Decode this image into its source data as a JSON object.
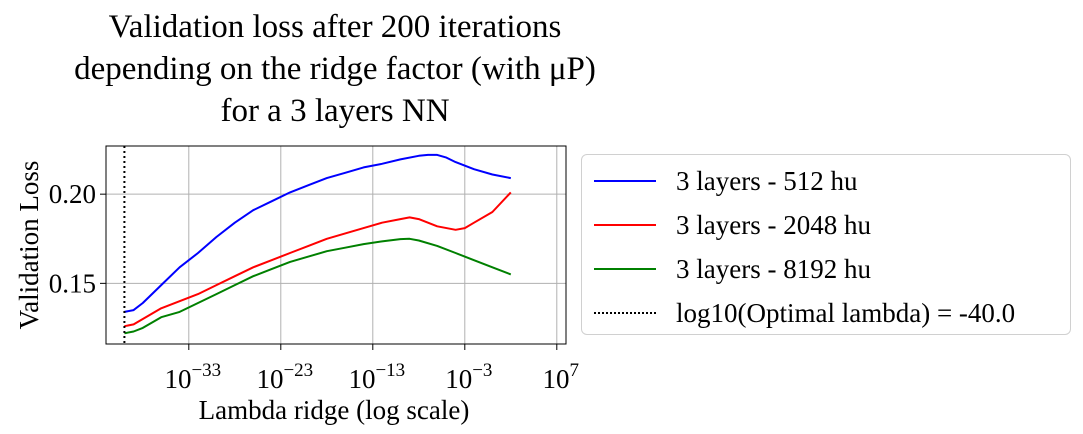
{
  "title_lines": [
    "Validation loss after 200 iterations",
    "depending on the ridge factor (with μP)",
    "for a 3 layers NN"
  ],
  "chart_data": {
    "type": "line",
    "title": "Validation loss after 200 iterations depending on the ridge factor (with μP) for a 3 layers NN",
    "xlabel": "Lambda ridge (log scale)",
    "ylabel": "Validation Loss",
    "xscale": "log",
    "x_ticks": [
      {
        "base": "10",
        "exp": "−33",
        "value": -33
      },
      {
        "base": "10",
        "exp": "−23",
        "value": -23
      },
      {
        "base": "10",
        "exp": "−13",
        "value": -13
      },
      {
        "base": "10",
        "exp": "−3",
        "value": -3
      },
      {
        "base": "10",
        "exp": "7",
        "value": 7
      }
    ],
    "y_ticks": [
      {
        "label": "0.15",
        "value": 0.15
      },
      {
        "label": "0.20",
        "value": 0.2
      }
    ],
    "xlim_log10": [
      -42,
      8
    ],
    "ylim": [
      0.116,
      0.227
    ],
    "grid": true,
    "legend_position": "outside right",
    "series": [
      {
        "name": "3 layers - 512 hu",
        "color": "#0000ff",
        "x_log10": [
          -40,
          -39,
          -38,
          -36,
          -34,
          -32,
          -30,
          -28,
          -26,
          -24,
          -22,
          -20,
          -18,
          -16,
          -14,
          -12,
          -10,
          -8,
          -7,
          -6,
          -5,
          -4,
          -2,
          0,
          2
        ],
        "y": [
          0.134,
          0.135,
          0.139,
          0.149,
          0.159,
          0.167,
          0.176,
          0.184,
          0.191,
          0.196,
          0.201,
          0.205,
          0.209,
          0.212,
          0.215,
          0.217,
          0.2195,
          0.2215,
          0.222,
          0.222,
          0.2205,
          0.218,
          0.214,
          0.211,
          0.209
        ]
      },
      {
        "name": "3 layers - 2048 hu",
        "color": "#ff0000",
        "x_log10": [
          -40,
          -39,
          -38,
          -36,
          -34,
          -32,
          -30,
          -28,
          -26,
          -24,
          -22,
          -20,
          -18,
          -16,
          -14,
          -12,
          -10,
          -9,
          -8,
          -6,
          -4,
          -3,
          -2,
          0,
          2
        ],
        "y": [
          0.126,
          0.127,
          0.13,
          0.136,
          0.14,
          0.144,
          0.149,
          0.154,
          0.159,
          0.163,
          0.167,
          0.171,
          0.175,
          0.178,
          0.181,
          0.184,
          0.186,
          0.187,
          0.186,
          0.182,
          0.18,
          0.181,
          0.184,
          0.19,
          0.201
        ]
      },
      {
        "name": "3 layers - 8192 hu",
        "color": "#008000",
        "x_log10": [
          -40,
          -39,
          -38,
          -36,
          -34,
          -32,
          -30,
          -28,
          -26,
          -24,
          -22,
          -20,
          -18,
          -16,
          -14,
          -12,
          -10,
          -9,
          -8,
          -6,
          -4,
          -2,
          0,
          2
        ],
        "y": [
          0.122,
          0.123,
          0.125,
          0.131,
          0.134,
          0.139,
          0.144,
          0.149,
          0.154,
          0.158,
          0.162,
          0.165,
          0.168,
          0.17,
          0.172,
          0.1735,
          0.1748,
          0.175,
          0.174,
          0.171,
          0.167,
          0.163,
          0.159,
          0.155
        ]
      }
    ],
    "vline": {
      "name": "log10(Optimal lambda) = -40.0",
      "x_log10": -40.0,
      "color": "#000000",
      "style": "dotted"
    }
  }
}
